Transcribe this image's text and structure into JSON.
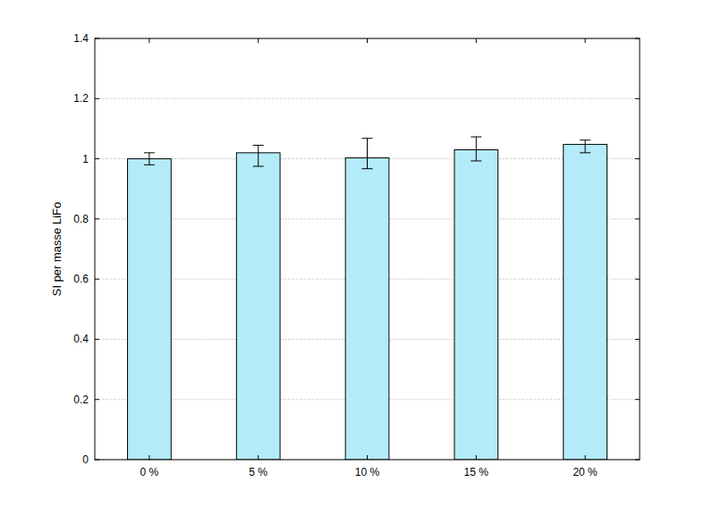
{
  "chart_data": {
    "type": "bar",
    "y_label": "SI per masse LiFo",
    "categories": [
      "0 %",
      "5 %",
      "10 %",
      "15 %",
      "20 %"
    ],
    "values": [
      1.0,
      1.02,
      1.003,
      1.03,
      1.048
    ],
    "error_low": [
      0.02,
      0.045,
      0.036,
      0.037,
      0.028
    ],
    "error_high": [
      0.02,
      0.025,
      0.065,
      0.043,
      0.014
    ],
    "color": "#b3ebf8",
    "ylim": [
      0,
      1.4
    ],
    "yticks": [
      0,
      0.2,
      0.4,
      0.6,
      0.8,
      1,
      1.2,
      1.4
    ],
    "grid": true
  }
}
